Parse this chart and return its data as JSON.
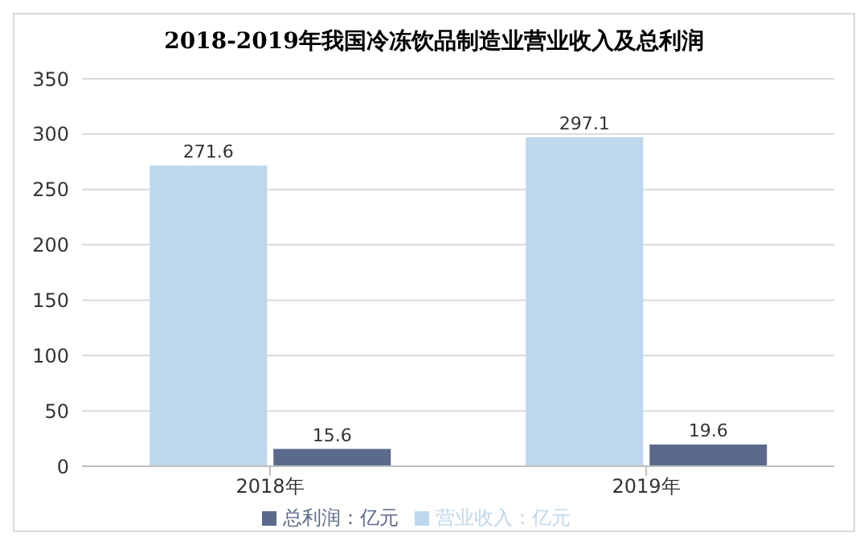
{
  "chart_data": {
    "type": "bar",
    "title": "2018-2019年我国冷冻饮品制造业营业收入及总利润",
    "categories": [
      "2018年",
      "2019年"
    ],
    "series": [
      {
        "name": "营业收入：亿元",
        "color": "#bdd7ee",
        "values": [
          271.6,
          297.1
        ]
      },
      {
        "name": "总利润：亿元",
        "color": "#5b6a8c",
        "values": [
          15.6,
          19.6
        ]
      }
    ],
    "ylim": [
      0,
      350
    ],
    "yticks": [
      0,
      50,
      100,
      150,
      200,
      250,
      300,
      350
    ],
    "grid": "y",
    "legend": "bottom",
    "data_labels": true
  }
}
